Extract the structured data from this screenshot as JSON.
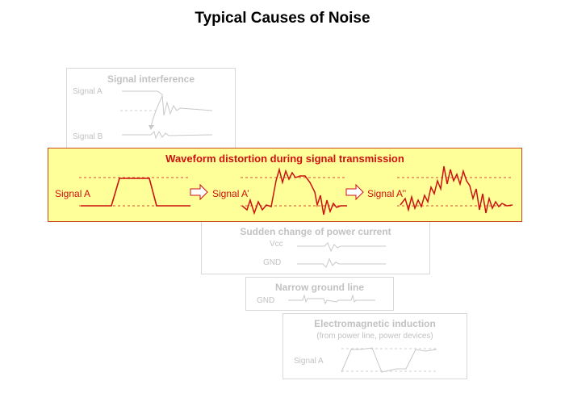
{
  "title": "Typical Causes of Noise",
  "panels": {
    "interference": {
      "title": "Signal interference",
      "signal_a": "Signal A",
      "signal_b": "Signal B"
    },
    "distortion": {
      "title": "Waveform distortion during signal transmission",
      "signal_1": "Signal A",
      "signal_2": "Signal A’",
      "signal_3": "Signal A’’"
    },
    "power": {
      "title": "Sudden change of power current",
      "vcc": "Vcc",
      "gnd": "GND"
    },
    "ground": {
      "title": "Narrow ground line",
      "gnd": "GND"
    },
    "em": {
      "title": "Electromagnetic induction",
      "subtitle": "(from power line, power devices)",
      "signal_a": "Signal A"
    }
  },
  "colors": {
    "accent": "#cc1111",
    "highlight_bg": "#ffff99",
    "faded": "#c2c2c2"
  }
}
